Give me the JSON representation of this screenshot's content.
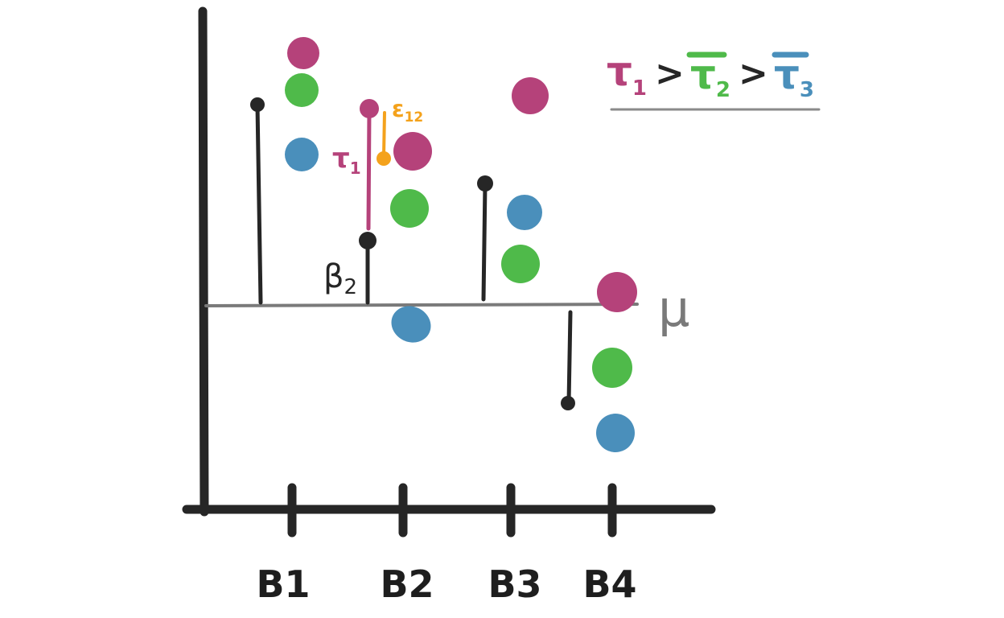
{
  "colors": {
    "ink": "#262626",
    "baseline": "#7a7a7a",
    "treatment_1": "#b5427a",
    "treatment_2": "#4fba4a",
    "treatment_3": "#4a8fbb",
    "error": "#f4a21c"
  },
  "labels": {
    "mu": "μ",
    "beta_sub": "2",
    "beta": "β",
    "tau": "τ",
    "tau_sub": "1",
    "epsilon": "ε",
    "epsilon_sub": "12"
  },
  "legend": {
    "items": [
      {
        "symbol": "τ",
        "sub": "1",
        "bar": false,
        "color_key": "treatment_1"
      },
      {
        "symbol": "τ",
        "sub": "2",
        "bar": true,
        "color_key": "treatment_2"
      },
      {
        "symbol": "τ",
        "sub": "3",
        "bar": true,
        "color_key": "treatment_3"
      }
    ],
    "separator": ">"
  },
  "blocks": [
    {
      "name": "B1",
      "effect": 2.5,
      "treatments": {
        "t1": 3.1,
        "t2": 2.7,
        "t3": 1.9
      }
    },
    {
      "name": "B2",
      "effect": 0.8,
      "treatments": {
        "t1": 1.9,
        "t2": 1.2,
        "t3": -0.2
      }
    },
    {
      "name": "B3",
      "effect": 1.5,
      "treatments": {
        "t1": 2.6,
        "t2": 0.5,
        "t3": 1.1
      }
    },
    {
      "name": "B4",
      "effect": -1.2,
      "treatments": {
        "t1": 0.1,
        "t2": -0.8,
        "t3": -1.6
      }
    }
  ],
  "annotations": {
    "beta_block": "B2",
    "tau_block": "B2",
    "tau_treatment": "t1",
    "tau_effect": 2.5,
    "error_value": 1.9
  }
}
